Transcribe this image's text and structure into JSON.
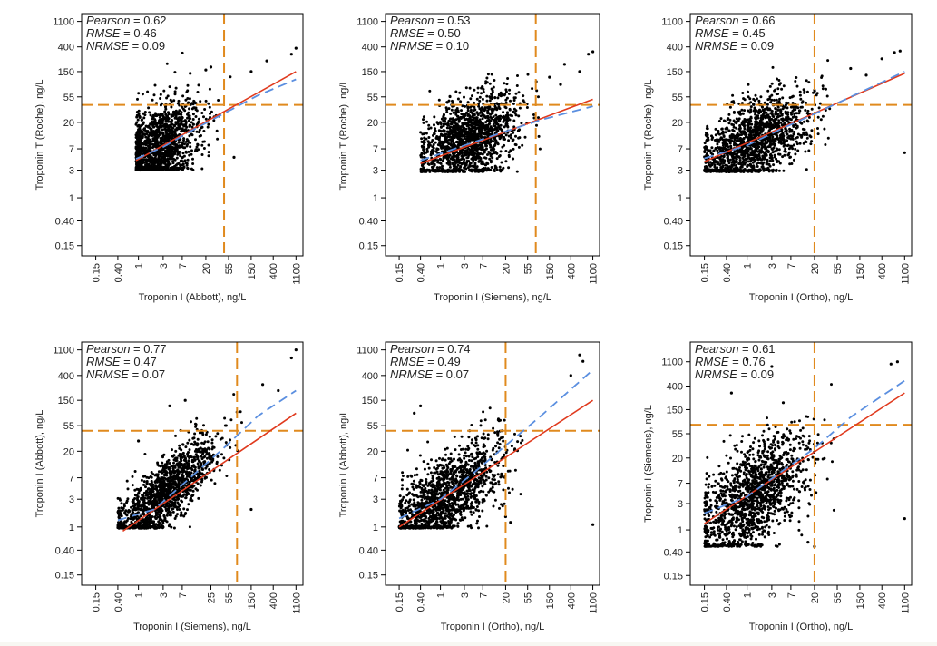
{
  "figure": {
    "grid": false,
    "legend": "none",
    "colors": {
      "points": "#000000",
      "regression_line": "#e03a1e",
      "loess_line": "#5b8fe0",
      "threshold_lines": "#e08a1e",
      "axis": "#000000",
      "panel_background": "#ffffff",
      "bottom_strip": "#f7f7f2"
    }
  },
  "chart_data": [
    {
      "type": "scatter",
      "panel": "top-left",
      "xlabel": "Troponin I (Abbott), ng/L",
      "ylabel": "Troponin T (Roche), ng/L",
      "x_scale": "log",
      "y_scale": "log",
      "xlim": [
        0.08,
        1500
      ],
      "ylim": [
        0.1,
        1500
      ],
      "x_ticks": [
        0.15,
        0.4,
        1,
        3,
        7,
        20,
        55,
        150,
        400,
        1100
      ],
      "x_tick_labels": [
        "0.15",
        "0.40",
        "1",
        "3",
        "7",
        "20",
        "55",
        "150",
        "400",
        "1100"
      ],
      "y_ticks": [
        0.15,
        0.4,
        1,
        3,
        7,
        20,
        55,
        150,
        400,
        1100
      ],
      "y_tick_labels": [
        "0.15",
        "0.40",
        "1",
        "3",
        "7",
        "20",
        "55",
        "150",
        "400",
        "1100"
      ],
      "stats": [
        {
          "name": "Pearson",
          "value": "0.62"
        },
        {
          "name": "RMSE",
          "value": "0.46"
        },
        {
          "name": "NRMSE",
          "value": "0.09"
        }
      ],
      "threshold_x": 45,
      "threshold_y": 40,
      "regression_line": {
        "x": [
          0.9,
          1100
        ],
        "y": [
          4.4,
          150
        ]
      },
      "loess_line": {
        "x": [
          0.9,
          3,
          10,
          50,
          200,
          1100
        ],
        "y": [
          4.7,
          7.5,
          14,
          30,
          58,
          110
        ]
      },
      "point_cloud": {
        "n": 1500,
        "x_range": [
          0.9,
          60
        ],
        "y_floor": 3,
        "slope": 0.5,
        "intercept_log10": 0.66,
        "spread": 0.36,
        "x_center": 0.35,
        "x_spread": 0.42
      },
      "outliers": {
        "x": [
          900,
          1100,
          300,
          150,
          70,
          20,
          25,
          10
        ],
        "y": [
          300,
          380,
          230,
          150,
          5,
          160,
          180,
          140
        ]
      }
    },
    {
      "type": "scatter",
      "panel": "top-middle",
      "xlabel": "Troponin I (Siemens), ng/L",
      "ylabel": "Troponin T (Roche), ng/L",
      "x_scale": "log",
      "y_scale": "log",
      "xlim": [
        0.08,
        1500
      ],
      "ylim": [
        0.1,
        1500
      ],
      "x_ticks": [
        0.15,
        0.4,
        1,
        3,
        7,
        20,
        55,
        150,
        400,
        1100
      ],
      "x_tick_labels": [
        "0.15",
        "0.40",
        "1",
        "3",
        "7",
        "20",
        "55",
        "150",
        "400",
        "1100"
      ],
      "y_ticks": [
        0.15,
        0.4,
        1,
        3,
        7,
        20,
        55,
        150,
        400,
        1100
      ],
      "y_tick_labels": [
        "0.15",
        "0.40",
        "1",
        "3",
        "7",
        "20",
        "55",
        "150",
        "400",
        "1100"
      ],
      "stats": [
        {
          "name": "Pearson",
          "value": "0.53"
        },
        {
          "name": "RMSE",
          "value": "0.50"
        },
        {
          "name": "NRMSE",
          "value": "0.10"
        }
      ],
      "threshold_x": 80,
      "threshold_y": 40,
      "regression_line": {
        "x": [
          0.4,
          1100
        ],
        "y": [
          3.9,
          50
        ]
      },
      "loess_line": {
        "x": [
          0.4,
          3,
          20,
          100,
          1100
        ],
        "y": [
          4.4,
          8,
          14,
          22,
          38
        ]
      },
      "point_cloud": {
        "n": 1500,
        "x_range": [
          0.4,
          100
        ],
        "y_floor": 2.8,
        "slope": 0.35,
        "intercept_log10": 0.8,
        "spread": 0.36,
        "x_center": 0.55,
        "x_spread": 0.5
      },
      "outliers": {
        "x": [
          900,
          1100,
          300,
          600,
          150,
          250
        ],
        "y": [
          300,
          330,
          200,
          150,
          120,
          90
        ]
      }
    },
    {
      "type": "scatter",
      "panel": "top-right",
      "xlabel": "Troponin I (Ortho), ng/L",
      "ylabel": "Troponin T (Roche), ng/L",
      "x_scale": "log",
      "y_scale": "log",
      "xlim": [
        0.08,
        1500
      ],
      "ylim": [
        0.1,
        1500
      ],
      "x_ticks": [
        0.15,
        0.4,
        1,
        3,
        7,
        20,
        55,
        150,
        400,
        1100
      ],
      "x_tick_labels": [
        "0.15",
        "0.40",
        "1",
        "3",
        "7",
        "20",
        "55",
        "150",
        "400",
        "1100"
      ],
      "y_ticks": [
        0.15,
        0.4,
        1,
        3,
        7,
        20,
        55,
        150,
        400,
        1100
      ],
      "y_tick_labels": [
        "0.15",
        "0.40",
        "1",
        "3",
        "7",
        "20",
        "55",
        "150",
        "400",
        "1100"
      ],
      "stats": [
        {
          "name": "Pearson",
          "value": "0.66"
        },
        {
          "name": "RMSE",
          "value": "0.45"
        },
        {
          "name": "NRMSE",
          "value": "0.09"
        }
      ],
      "threshold_x": 20,
      "threshold_y": 40,
      "regression_line": {
        "x": [
          0.15,
          1100
        ],
        "y": [
          4.2,
          140
        ]
      },
      "loess_line": {
        "x": [
          0.15,
          1,
          5,
          20,
          100,
          1100
        ],
        "y": [
          4.8,
          8,
          16,
          28,
          55,
          150
        ]
      },
      "point_cloud": {
        "n": 1500,
        "x_range": [
          0.15,
          40
        ],
        "y_floor": 2.8,
        "slope": 0.45,
        "intercept_log10": 0.9,
        "spread": 0.34,
        "x_center": 0.1,
        "x_spread": 0.55
      },
      "outliers": {
        "x": [
          700,
          900,
          400,
          200,
          1100,
          100
        ],
        "y": [
          320,
          340,
          250,
          130,
          6,
          170
        ]
      }
    },
    {
      "type": "scatter",
      "panel": "bottom-left",
      "xlabel": "Troponin I (Siemens), ng/L",
      "ylabel": "Troponin I (Abbott), ng/L",
      "x_scale": "log",
      "y_scale": "log",
      "xlim": [
        0.08,
        1500
      ],
      "ylim": [
        0.1,
        1500
      ],
      "x_ticks": [
        0.15,
        0.4,
        1,
        3,
        7,
        25,
        55,
        150,
        400,
        1100
      ],
      "x_tick_labels": [
        "0.15",
        "0.40",
        "1",
        "3",
        "7",
        "25",
        "55",
        "150",
        "400",
        "1100"
      ],
      "y_ticks": [
        0.15,
        0.4,
        1,
        3,
        7,
        20,
        55,
        150,
        400,
        1100
      ],
      "y_tick_labels": [
        "0.15",
        "0.40",
        "1",
        "3",
        "7",
        "20",
        "55",
        "150",
        "400",
        "1100"
      ],
      "stats": [
        {
          "name": "Pearson",
          "value": "0.77"
        },
        {
          "name": "RMSE",
          "value": "0.47"
        },
        {
          "name": "NRMSE",
          "value": "0.07"
        }
      ],
      "threshold_x": 80,
      "threshold_y": 45,
      "regression_line": {
        "x": [
          0.5,
          1100
        ],
        "y": [
          0.85,
          90
        ]
      },
      "loess_line": {
        "x": [
          0.4,
          2,
          10,
          50,
          200,
          1100
        ],
        "y": [
          1.3,
          2,
          7,
          25,
          80,
          220
        ]
      },
      "point_cloud": {
        "n": 1500,
        "x_range": [
          0.4,
          100
        ],
        "y_floor": 0.95,
        "slope": 0.75,
        "intercept_log10": 0.2,
        "spread": 0.3,
        "x_center": 0.5,
        "x_spread": 0.5
      },
      "outliers": {
        "x": [
          900,
          1100,
          500,
          250,
          8,
          4,
          1,
          150
        ],
        "y": [
          800,
          1100,
          220,
          280,
          150,
          120,
          30,
          2
        ]
      }
    },
    {
      "type": "scatter",
      "panel": "bottom-middle",
      "xlabel": "Troponin I (Ortho), ng/L",
      "ylabel": "Troponin I (Abbott), ng/L",
      "x_scale": "log",
      "y_scale": "log",
      "xlim": [
        0.08,
        1500
      ],
      "ylim": [
        0.1,
        1500
      ],
      "x_ticks": [
        0.15,
        0.4,
        1,
        3,
        7,
        20,
        55,
        150,
        400,
        1100
      ],
      "x_tick_labels": [
        "0.15",
        "0.40",
        "1",
        "3",
        "7",
        "20",
        "55",
        "150",
        "400",
        "1100"
      ],
      "y_ticks": [
        0.15,
        0.4,
        1,
        3,
        7,
        20,
        55,
        150,
        400,
        1100
      ],
      "y_tick_labels": [
        "0.15",
        "0.40",
        "1",
        "3",
        "7",
        "20",
        "55",
        "150",
        "400",
        "1100"
      ],
      "stats": [
        {
          "name": "Pearson",
          "value": "0.74"
        },
        {
          "name": "RMSE",
          "value": "0.49"
        },
        {
          "name": "NRMSE",
          "value": "0.07"
        }
      ],
      "threshold_x": 20,
      "threshold_y": 45,
      "regression_line": {
        "x": [
          0.15,
          1100
        ],
        "y": [
          1.0,
          150
        ]
      },
      "loess_line": {
        "x": [
          0.15,
          1,
          5,
          20,
          100,
          1100
        ],
        "y": [
          1.4,
          3,
          9,
          25,
          80,
          500
        ]
      },
      "point_cloud": {
        "n": 1500,
        "x_range": [
          0.15,
          50
        ],
        "y_floor": 0.95,
        "slope": 0.6,
        "intercept_log10": 0.45,
        "spread": 0.36,
        "x_center": 0.1,
        "x_spread": 0.55
      },
      "outliers": {
        "x": [
          600,
          700,
          400,
          1100,
          25,
          20,
          0.4,
          0.3
        ],
        "y": [
          900,
          700,
          400,
          1.1,
          1.2,
          1.5,
          120,
          90
        ]
      }
    },
    {
      "type": "scatter",
      "panel": "bottom-right",
      "xlabel": "Troponin I (Ortho), ng/L",
      "ylabel": "Troponin I (Siemens), ng/L",
      "x_scale": "log",
      "y_scale": "log",
      "xlim": [
        0.08,
        1500
      ],
      "ylim": [
        0.1,
        2500
      ],
      "x_ticks": [
        0.15,
        0.4,
        1,
        3,
        7,
        20,
        55,
        150,
        400,
        1100
      ],
      "x_tick_labels": [
        "0.15",
        "0.40",
        "1",
        "3",
        "7",
        "20",
        "55",
        "150",
        "400",
        "1100"
      ],
      "y_ticks": [
        0.15,
        0.4,
        1,
        3,
        7,
        20,
        55,
        150,
        400,
        1100
      ],
      "y_tick_labels": [
        "0.15",
        "0.40",
        "1",
        "3",
        "7",
        "20",
        "55",
        "150",
        "400",
        "1100"
      ],
      "stats": [
        {
          "name": "Pearson",
          "value": "0.61"
        },
        {
          "name": "RMSE",
          "value": "0.76"
        },
        {
          "name": "NRMSE",
          "value": "0.09"
        }
      ],
      "threshold_x": 20,
      "threshold_y": 80,
      "regression_line": {
        "x": [
          0.15,
          1100
        ],
        "y": [
          1.3,
          300
        ]
      },
      "loess_line": {
        "x": [
          0.15,
          1,
          5,
          20,
          100,
          1100
        ],
        "y": [
          2,
          4,
          12,
          30,
          110,
          500
        ]
      },
      "point_cloud": {
        "n": 1500,
        "x_range": [
          0.15,
          50
        ],
        "y_floor": 0.5,
        "slope": 0.6,
        "intercept_log10": 0.55,
        "spread": 0.45,
        "x_center": 0.1,
        "x_spread": 0.55
      },
      "outliers": {
        "x": [
          600,
          800,
          1100,
          20,
          15,
          3,
          1,
          0.5,
          5
        ],
        "y": [
          1000,
          1100,
          1.6,
          0.5,
          0.6,
          900,
          1200,
          300,
          200
        ]
      }
    }
  ]
}
